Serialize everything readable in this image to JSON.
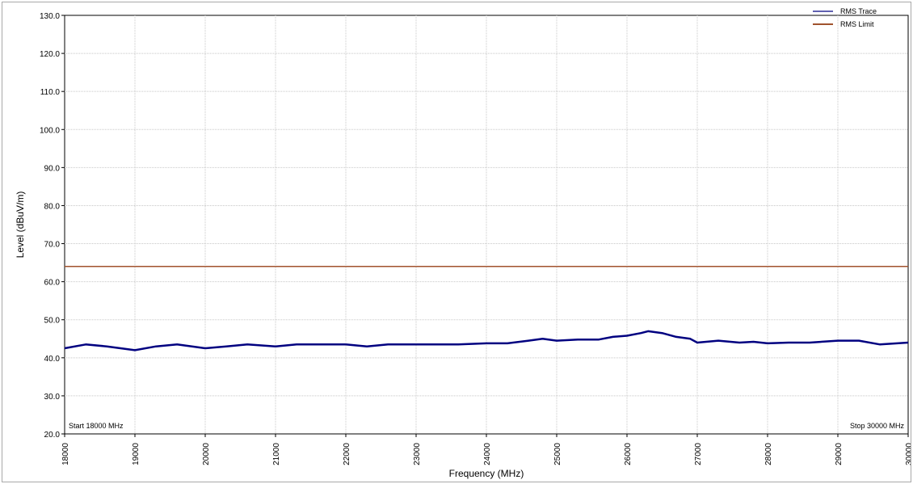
{
  "chart_data": {
    "type": "line",
    "title": "",
    "xlabel": "Frequency (MHz)",
    "ylabel": "Level (dBuV/m)",
    "xlim": [
      18000,
      30000
    ],
    "ylim": [
      20,
      130
    ],
    "grid": true,
    "legend_position": "top-right",
    "x_ticks": [
      {
        "value": 18000,
        "label": "18000"
      },
      {
        "value": 19000,
        "label": "19000"
      },
      {
        "value": 20000,
        "label": "20000"
      },
      {
        "value": 21000,
        "label": "21000"
      },
      {
        "value": 22000,
        "label": "22000"
      },
      {
        "value": 23000,
        "label": "23000"
      },
      {
        "value": 24000,
        "label": "24000"
      },
      {
        "value": 25000,
        "label": "25000"
      },
      {
        "value": 26000,
        "label": "26000"
      },
      {
        "value": 27000,
        "label": "27000"
      },
      {
        "value": 28000,
        "label": "28000"
      },
      {
        "value": 29000,
        "label": "29000"
      },
      {
        "value": 30000,
        "label": "30000"
      }
    ],
    "y_ticks": [
      {
        "value": 20,
        "label": "20.0"
      },
      {
        "value": 30,
        "label": "30.0"
      },
      {
        "value": 40,
        "label": "40.0"
      },
      {
        "value": 50,
        "label": "50.0"
      },
      {
        "value": 60,
        "label": "60.0"
      },
      {
        "value": 70,
        "label": "70.0"
      },
      {
        "value": 80,
        "label": "80.0"
      },
      {
        "value": 90,
        "label": "90.0"
      },
      {
        "value": 100,
        "label": "100.0"
      },
      {
        "value": 110,
        "label": "110.0"
      },
      {
        "value": 120,
        "label": "120.0"
      },
      {
        "value": 130,
        "label": "130.0"
      }
    ],
    "start_label": "Start 18000 MHz",
    "stop_label": "Stop 30000 MHz",
    "series": [
      {
        "name": "RMS Trace",
        "color": "#000080",
        "x": [
          18000,
          18300,
          18600,
          19000,
          19300,
          19600,
          20000,
          20300,
          20600,
          21000,
          21300,
          21600,
          22000,
          22300,
          22600,
          23000,
          23300,
          23600,
          24000,
          24300,
          24600,
          24800,
          25000,
          25300,
          25600,
          25800,
          26000,
          26200,
          26300,
          26500,
          26700,
          26900,
          27000,
          27300,
          27600,
          27800,
          28000,
          28300,
          28600,
          29000,
          29300,
          29600,
          30000
        ],
        "y": [
          42.5,
          43.5,
          43,
          42,
          43,
          43.5,
          42.5,
          43,
          43.5,
          43,
          43.5,
          43.5,
          43.5,
          43,
          43.5,
          43.5,
          43.5,
          43.5,
          43.8,
          43.8,
          44.5,
          45,
          44.5,
          44.8,
          44.8,
          45.5,
          45.8,
          46.5,
          47,
          46.5,
          45.5,
          45,
          44,
          44.5,
          44,
          44.2,
          43.8,
          44,
          44,
          44.5,
          44.5,
          43.5,
          44
        ]
      },
      {
        "name": "RMS Limit",
        "color": "#a0522d",
        "x": [
          18000,
          30000
        ],
        "y": [
          64,
          64
        ]
      }
    ]
  }
}
